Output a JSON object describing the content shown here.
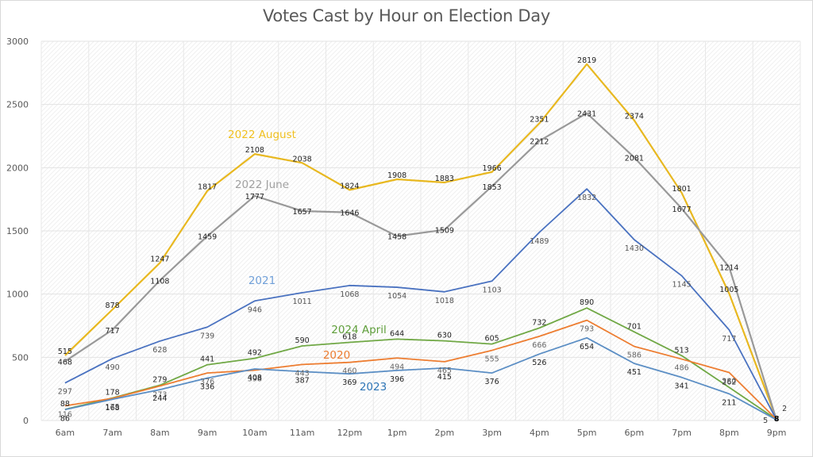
{
  "chart_data": {
    "type": "line",
    "title": "Votes Cast by Hour on Election Day",
    "xlabel": "",
    "ylabel": "",
    "categories": [
      "6am",
      "7am",
      "8am",
      "9am",
      "10am",
      "11am",
      "12pm",
      "1pm",
      "2pm",
      "3pm",
      "4pm",
      "5pm",
      "6pm",
      "7pm",
      "8pm",
      "9pm"
    ],
    "ylim": [
      0,
      3000
    ],
    "yticks": [
      0,
      500,
      1000,
      1500,
      2000,
      2500,
      3000
    ],
    "grid": true,
    "legend": "inline labels",
    "data_labels": true,
    "series": [
      {
        "name": "2022 August",
        "color": "#e8b820",
        "label_color": "#f0c020",
        "values": [
          515,
          878,
          1247,
          1817,
          2108,
          2038,
          1824,
          1908,
          1883,
          1966,
          2351,
          2819,
          2374,
          1801,
          1005,
          8
        ]
      },
      {
        "name": "2022 June",
        "color": "#999999",
        "label_color": "#a0a0a0",
        "values": [
          468,
          717,
          1108,
          1459,
          1777,
          1657,
          1646,
          1458,
          1509,
          1853,
          2212,
          2431,
          2081,
          1677,
          1214,
          2
        ]
      },
      {
        "name": "2021",
        "color": "#4a72c0",
        "label_color": "#6f9fd8",
        "values": [
          297,
          490,
          628,
          739,
          946,
          1011,
          1068,
          1054,
          1018,
          1103,
          1489,
          1832,
          1430,
          1145,
          717,
          5
        ]
      },
      {
        "name": "2024 April",
        "color": "#70a845",
        "label_color": "#5e9e3a",
        "values": [
          88,
          178,
          279,
          441,
          492,
          590,
          618,
          644,
          630,
          605,
          732,
          890,
          701,
          513,
          262,
          8
        ]
      },
      {
        "name": "2020",
        "color": "#ed7d31",
        "label_color": "#ed7d31",
        "values": [
          116,
          175,
          273,
          376,
          398,
          443,
          460,
          494,
          465,
          555,
          666,
          793,
          586,
          486,
          380,
          8
        ]
      },
      {
        "name": "2023",
        "color": "#5b8ec4",
        "label_color": "#2e75b6",
        "values": [
          86,
          168,
          244,
          336,
          408,
          387,
          369,
          396,
          415,
          376,
          526,
          654,
          451,
          341,
          211,
          5
        ]
      }
    ]
  }
}
